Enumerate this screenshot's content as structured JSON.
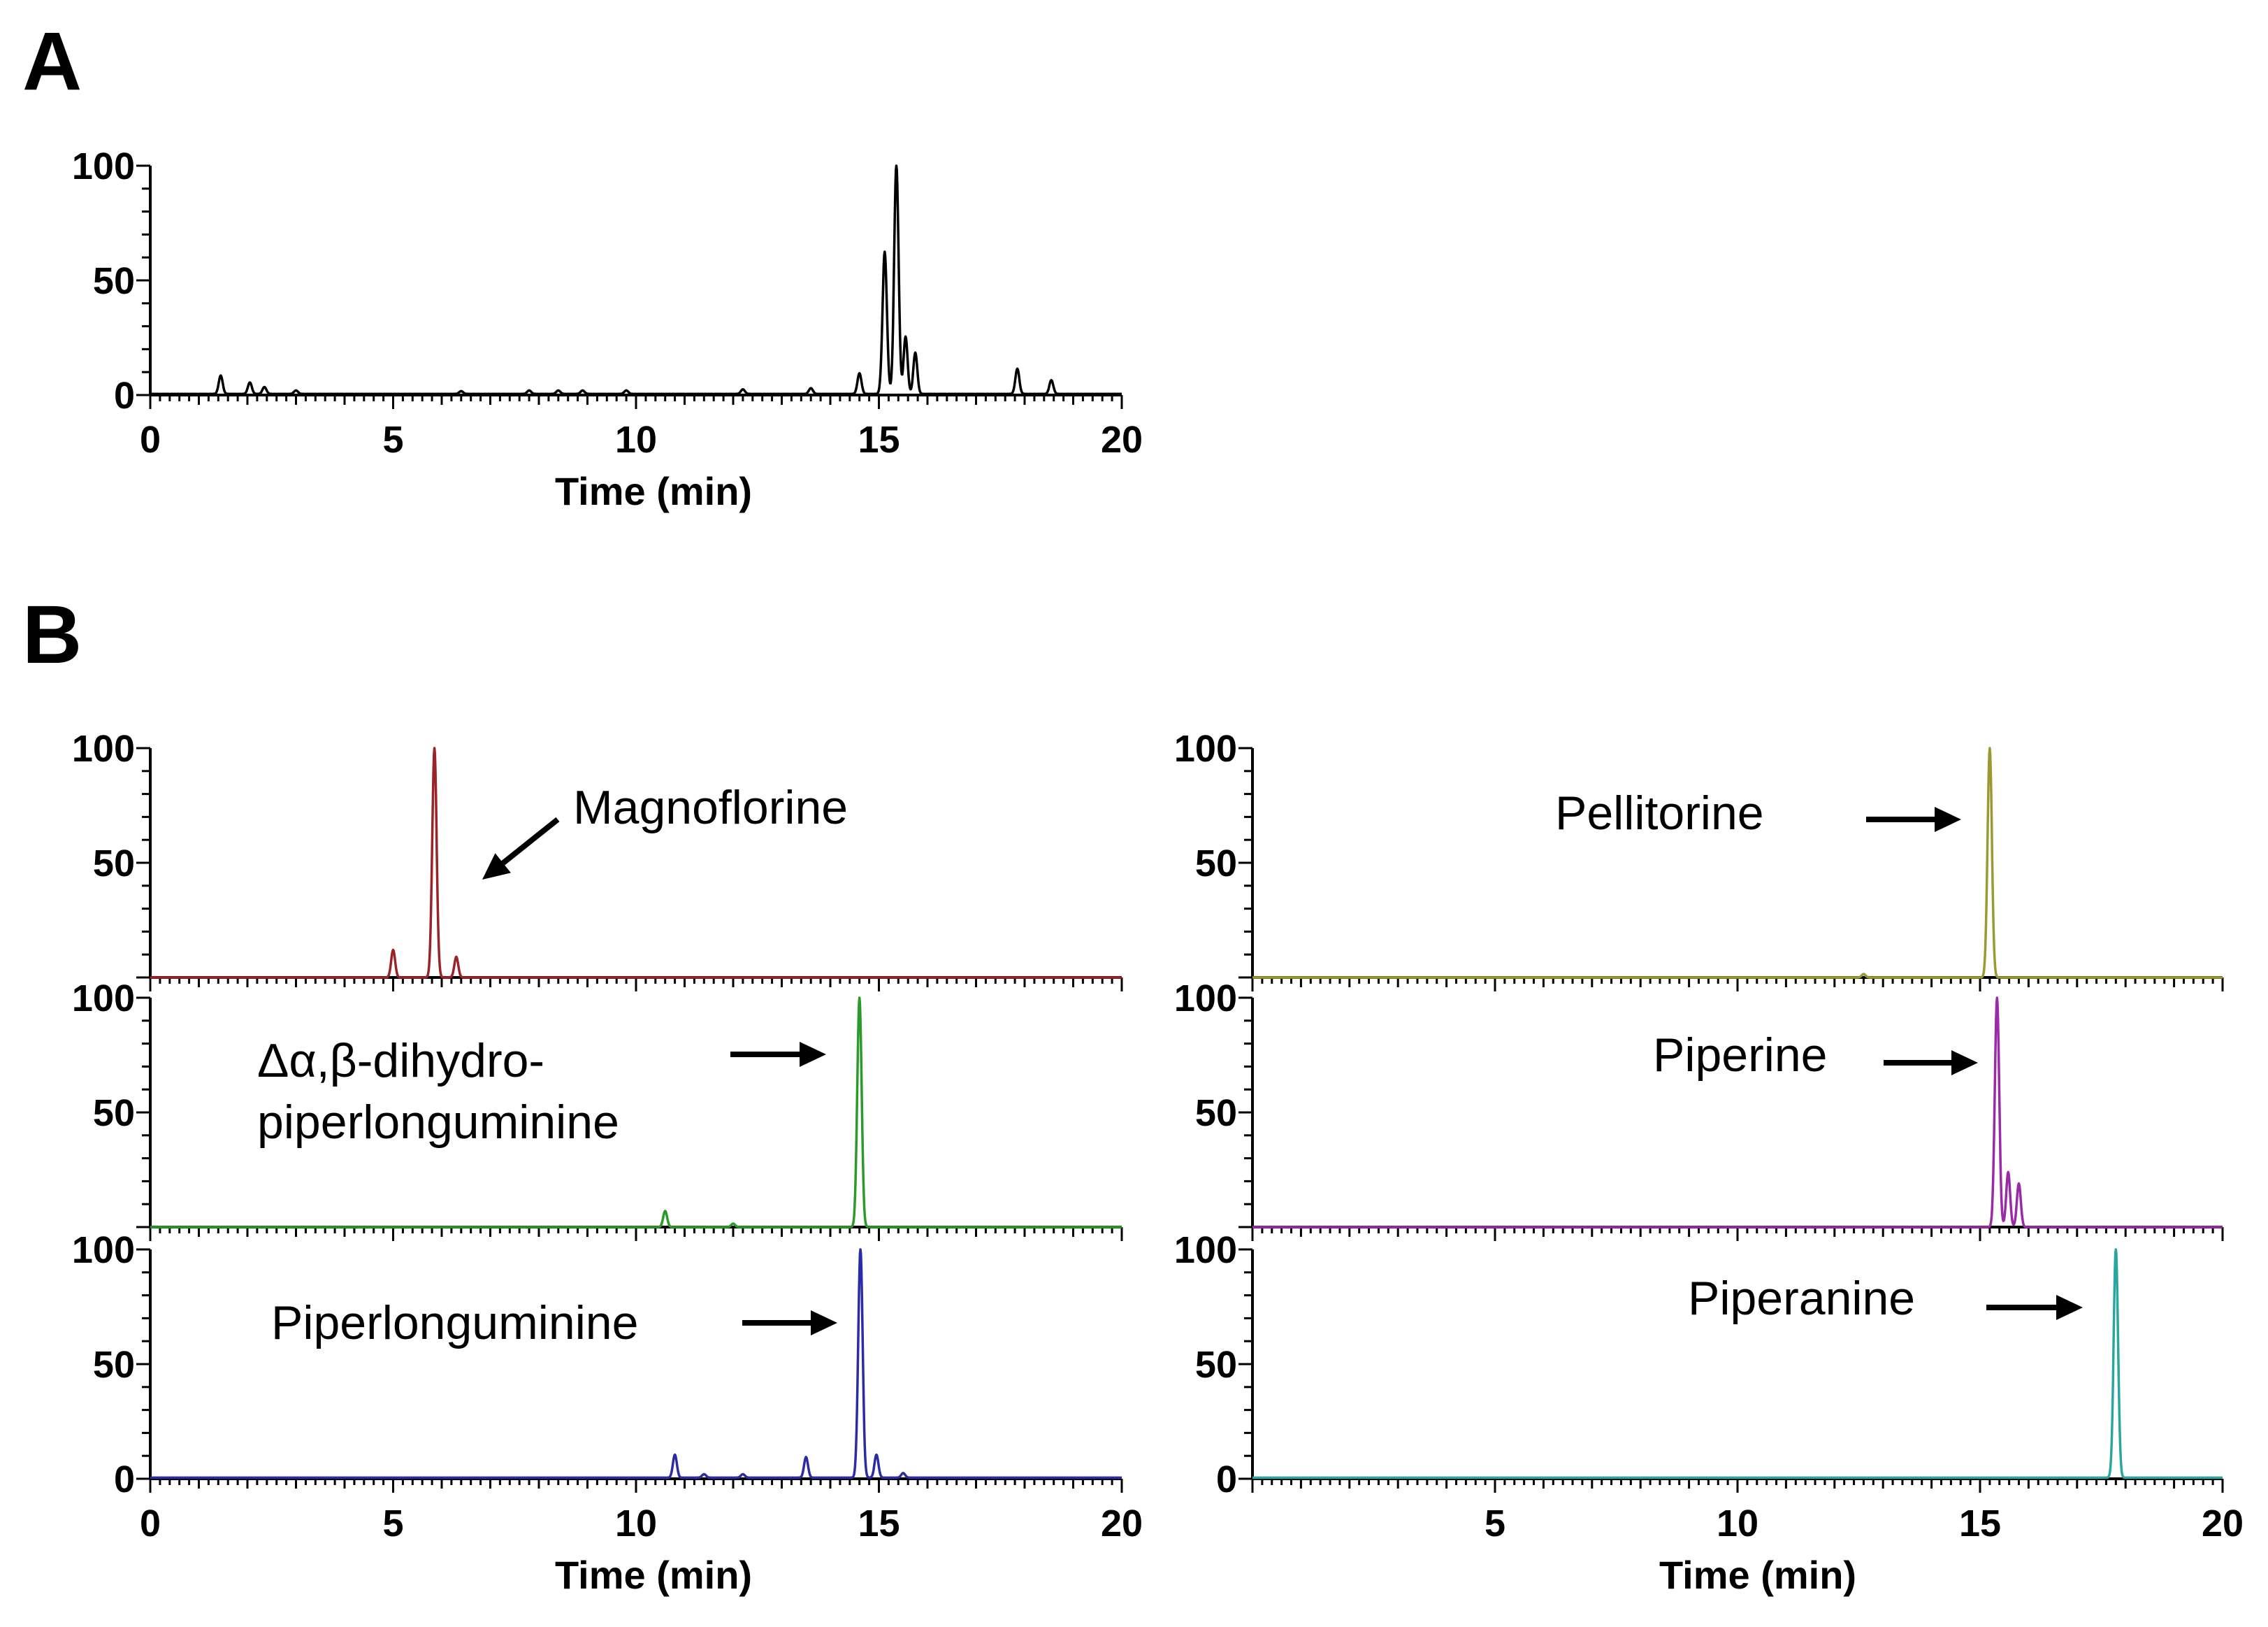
{
  "panel_labels": {
    "A": "A",
    "B": "B"
  },
  "chart_data": [
    {
      "id": "A",
      "type": "line",
      "xlabel": "Time (min)",
      "ylabel": "",
      "xlim": [
        0,
        20
      ],
      "ylim": [
        0,
        100
      ],
      "x_ticks": [
        "0",
        "5",
        "10",
        "15",
        "20"
      ],
      "y_ticks": [
        "0",
        "50",
        "100"
      ],
      "color": "#000000",
      "baseline": 0.5,
      "peaks": [
        {
          "t": 1.45,
          "h": 8
        },
        {
          "t": 2.05,
          "h": 5
        },
        {
          "t": 2.35,
          "h": 3
        },
        {
          "t": 3.0,
          "h": 1.5
        },
        {
          "t": 6.4,
          "h": 1.2
        },
        {
          "t": 7.8,
          "h": 1.5
        },
        {
          "t": 8.4,
          "h": 1.5
        },
        {
          "t": 8.9,
          "h": 1.5
        },
        {
          "t": 9.8,
          "h": 1.5
        },
        {
          "t": 12.2,
          "h": 2
        },
        {
          "t": 13.6,
          "h": 2.5
        },
        {
          "t": 14.6,
          "h": 9
        },
        {
          "t": 15.12,
          "h": 62
        },
        {
          "t": 15.36,
          "h": 100
        },
        {
          "t": 15.55,
          "h": 25
        },
        {
          "t": 15.75,
          "h": 18
        },
        {
          "t": 17.85,
          "h": 11
        },
        {
          "t": 18.55,
          "h": 6
        }
      ],
      "label": ""
    },
    {
      "id": "B1",
      "type": "line",
      "xlabel": "",
      "xlim": [
        0,
        20
      ],
      "ylim": [
        0,
        100
      ],
      "x_ticks": [],
      "y_ticks": [
        "50",
        "100"
      ],
      "color": "#9b2226",
      "baseline": 0,
      "peaks": [
        {
          "t": 5.0,
          "h": 12
        },
        {
          "t": 5.85,
          "h": 100
        },
        {
          "t": 6.3,
          "h": 9
        }
      ],
      "label": "Magnoflorine"
    },
    {
      "id": "B2",
      "type": "line",
      "xlabel": "",
      "xlim": [
        0,
        20
      ],
      "ylim": [
        0,
        100
      ],
      "x_ticks": [],
      "y_ticks": [
        "50",
        "100"
      ],
      "color": "#2a9a2a",
      "baseline": 0,
      "peaks": [
        {
          "t": 10.6,
          "h": 7
        },
        {
          "t": 12.0,
          "h": 1.5
        },
        {
          "t": 14.6,
          "h": 100
        }
      ],
      "label": "Δα,β-dihydro-\npiperlonguminine"
    },
    {
      "id": "B3",
      "type": "line",
      "xlabel": "Time (min)",
      "xlim": [
        0,
        20
      ],
      "ylim": [
        0,
        100
      ],
      "x_ticks": [
        "0",
        "5",
        "10",
        "15",
        "20"
      ],
      "y_ticks": [
        "0",
        "50",
        "100"
      ],
      "color": "#2b2ba6",
      "baseline": 0.5,
      "peaks": [
        {
          "t": 10.8,
          "h": 10
        },
        {
          "t": 11.4,
          "h": 1.5
        },
        {
          "t": 12.2,
          "h": 1.5
        },
        {
          "t": 13.5,
          "h": 9
        },
        {
          "t": 14.62,
          "h": 100
        },
        {
          "t": 14.95,
          "h": 10
        },
        {
          "t": 15.5,
          "h": 2
        }
      ],
      "label": "Piperlonguminine"
    },
    {
      "id": "B4",
      "type": "line",
      "xlabel": "",
      "xlim": [
        0,
        20
      ],
      "ylim": [
        0,
        100
      ],
      "x_ticks": [],
      "y_ticks": [
        "50",
        "100"
      ],
      "color": "#9a9a33",
      "baseline": 0,
      "peaks": [
        {
          "t": 12.6,
          "h": 1.5
        },
        {
          "t": 15.2,
          "h": 100
        }
      ],
      "label": "Pellitorine"
    },
    {
      "id": "B5",
      "type": "line",
      "xlabel": "",
      "xlim": [
        0,
        20
      ],
      "ylim": [
        0,
        100
      ],
      "x_ticks": [],
      "y_ticks": [
        "50",
        "100"
      ],
      "color": "#9b2aa8",
      "baseline": 0,
      "peaks": [
        {
          "t": 15.35,
          "h": 100
        },
        {
          "t": 15.58,
          "h": 24
        },
        {
          "t": 15.8,
          "h": 19
        }
      ],
      "label": "Piperine"
    },
    {
      "id": "B6",
      "type": "line",
      "xlabel": "Time (min)",
      "xlim": [
        0,
        20
      ],
      "ylim": [
        0,
        100
      ],
      "x_ticks": [
        "5",
        "10",
        "15",
        "20"
      ],
      "y_ticks": [
        "0",
        "50",
        "100"
      ],
      "color": "#2aa6a0",
      "baseline": 0.5,
      "peaks": [
        {
          "t": 17.8,
          "h": 100
        }
      ],
      "label": "Piperanine"
    }
  ]
}
